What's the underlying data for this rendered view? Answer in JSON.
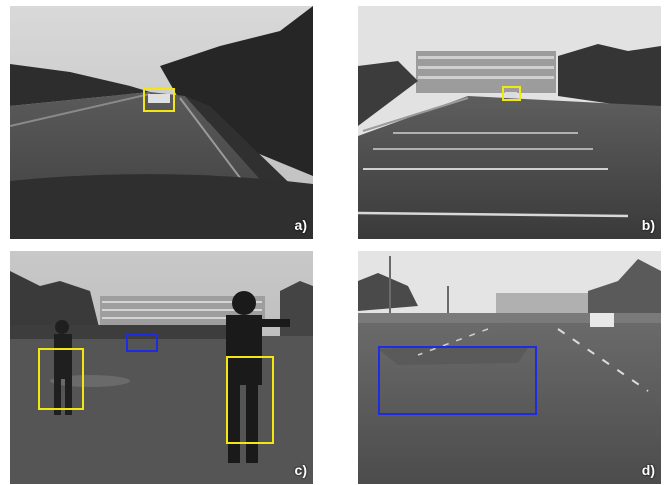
{
  "colors": {
    "detection_yellow": "#f2e614",
    "detection_blue": "#1e2be0"
  },
  "panels": [
    {
      "label": "a)",
      "scene": "highway-vehicle",
      "boxes": [
        {
          "color": "yellow"
        }
      ]
    },
    {
      "label": "b)",
      "scene": "parking-lot-vehicle",
      "boxes": [
        {
          "color": "yellow"
        }
      ]
    },
    {
      "label": "c)",
      "scene": "pedestrians",
      "boxes": [
        {
          "color": "yellow"
        },
        {
          "color": "yellow"
        },
        {
          "color": "blue"
        }
      ]
    },
    {
      "label": "d)",
      "scene": "road-patch",
      "boxes": [
        {
          "color": "blue"
        }
      ]
    }
  ]
}
